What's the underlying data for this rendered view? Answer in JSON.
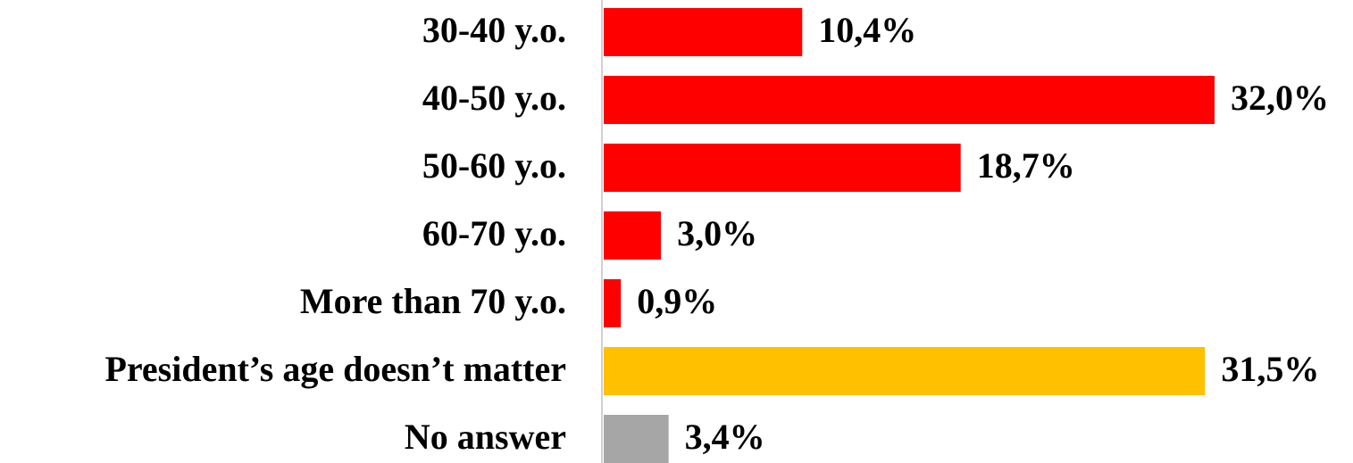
{
  "chart_data": {
    "type": "hbar",
    "categories": [
      "30-40 y.o.",
      "40-50 y.o.",
      "50-60 y.o.",
      "60-70 y.o.",
      "More than 70 y.o.",
      "President’s age doesn’t matter",
      "No answer"
    ],
    "values": [
      10.4,
      32.0,
      18.7,
      3.0,
      0.9,
      31.5,
      3.4
    ],
    "value_labels": [
      "10,4%",
      "32,0%",
      "18,7%",
      "3,0%",
      "0,9%",
      "31,5%",
      "3,4%"
    ],
    "colors": [
      "#ff0000",
      "#ff0000",
      "#ff0000",
      "#ff0000",
      "#ff0000",
      "#ffc000",
      "#a6a6a6"
    ],
    "xlim": [
      0,
      40
    ]
  }
}
